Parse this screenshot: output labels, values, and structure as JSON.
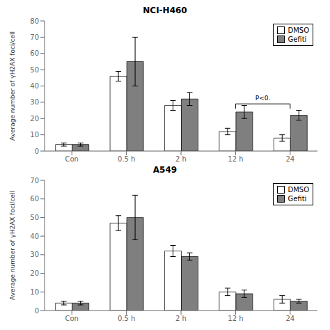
{
  "chart_data": [
    {
      "type": "bar",
      "title": "NCI-H460",
      "y_label": "Average number of γH2AX foci/cell",
      "categories": [
        "Con",
        "0.5 h",
        "2 h",
        "12 h",
        "24"
      ],
      "series": [
        {
          "name": "DMSO",
          "color": "white",
          "values": [
            4,
            46,
            28,
            12,
            8
          ],
          "errors": [
            1,
            3,
            3,
            2,
            2
          ]
        },
        {
          "name": "Gefiti",
          "color": "#7f7f7f",
          "values": [
            4,
            55,
            32,
            24,
            22
          ],
          "errors": [
            1,
            15,
            4,
            4,
            3
          ]
        }
      ],
      "ylim": [
        0,
        80
      ],
      "yticks": [
        0,
        10,
        20,
        30,
        40,
        50,
        60,
        70,
        80
      ],
      "legend": "upper right",
      "grid": false,
      "annotations": [
        {
          "text": "P<0.",
          "x": [
            "12 h",
            "24"
          ],
          "y": 29,
          "y_tick": 26
        }
      ]
    },
    {
      "type": "bar",
      "title": "A549",
      "y_label": "Average number of γH2AX foci/cell",
      "categories": [
        "Con",
        "0.5 h",
        "2 h",
        "12 h",
        "24"
      ],
      "series": [
        {
          "name": "DMSO",
          "color": "white",
          "values": [
            4,
            47,
            32,
            10,
            6
          ],
          "errors": [
            1,
            4,
            3,
            2,
            2
          ]
        },
        {
          "name": "Gefiti",
          "color": "#7f7f7f",
          "values": [
            4,
            50,
            29,
            9,
            5
          ],
          "errors": [
            1,
            12,
            2,
            2,
            1
          ]
        }
      ],
      "ylim": [
        0,
        70
      ],
      "yticks": [
        0,
        10,
        20,
        30,
        40,
        50,
        60,
        70
      ],
      "legend": "upper right",
      "grid": false
    }
  ]
}
